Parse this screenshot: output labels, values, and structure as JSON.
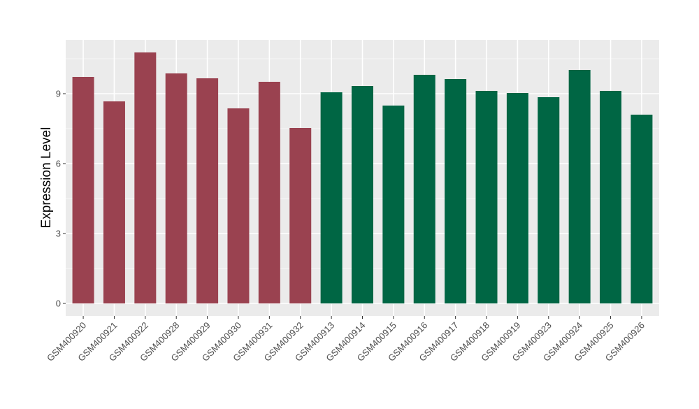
{
  "chart_data": {
    "type": "bar",
    "title": "",
    "xlabel": "",
    "ylabel": "Expression Level",
    "ylim": [
      -0.54,
      11.31
    ],
    "yticks": [
      0,
      3,
      6,
      9
    ],
    "ytick_labels": [
      "0",
      "3",
      "6",
      "9"
    ],
    "grid": true,
    "legend": "none",
    "categories": [
      "GSM400920",
      "GSM400921",
      "GSM400922",
      "GSM400928",
      "GSM400929",
      "GSM400930",
      "GSM400931",
      "GSM400932",
      "GSM400913",
      "GSM400914",
      "GSM400915",
      "GSM400916",
      "GSM400917",
      "GSM400918",
      "GSM400919",
      "GSM400923",
      "GSM400924",
      "GSM400925",
      "GSM400926"
    ],
    "values": [
      9.72,
      8.67,
      10.77,
      9.87,
      9.66,
      8.37,
      9.51,
      7.53,
      9.06,
      9.33,
      8.49,
      9.81,
      9.63,
      9.12,
      9.03,
      8.85,
      10.02,
      9.12,
      8.1
    ],
    "groups": [
      "A",
      "A",
      "A",
      "A",
      "A",
      "A",
      "A",
      "A",
      "B",
      "B",
      "B",
      "B",
      "B",
      "B",
      "B",
      "B",
      "B",
      "B",
      "B"
    ],
    "colors": {
      "A": "#9a4250",
      "B": "#006644"
    }
  }
}
